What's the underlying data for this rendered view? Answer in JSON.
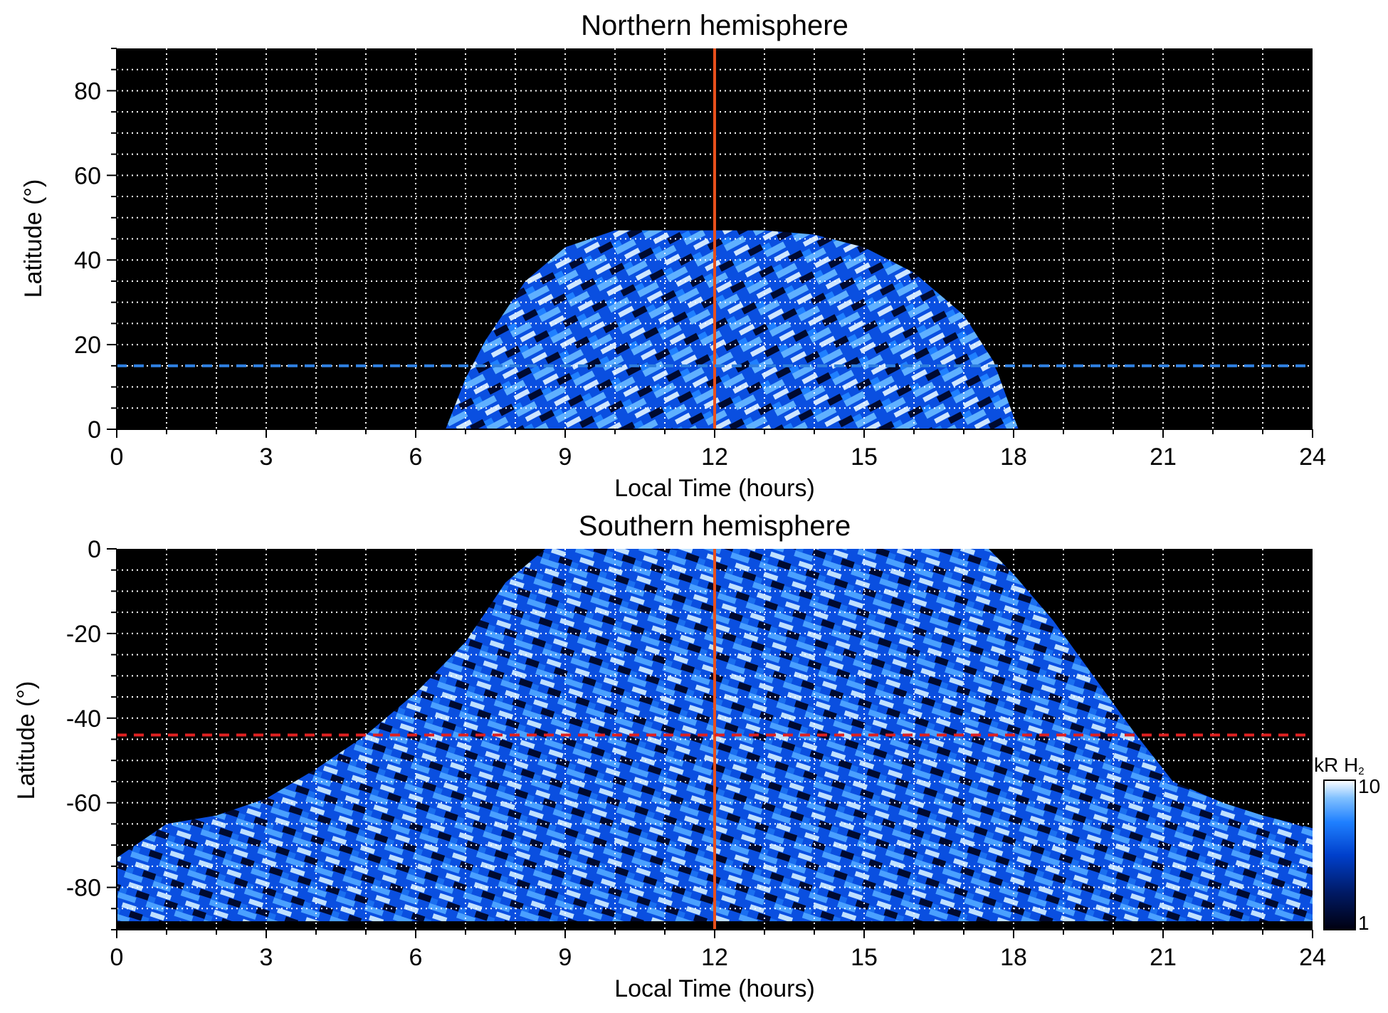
{
  "chart_data": [
    {
      "type": "heatmap",
      "title": "Northern hemisphere",
      "xlabel": "Local Time (hours)",
      "ylabel": "Latitude (°)",
      "xlim": [
        0,
        24
      ],
      "ylim": [
        0,
        90
      ],
      "xticks": [
        "0",
        "3",
        "6",
        "9",
        "12",
        "15",
        "18",
        "21",
        "24"
      ],
      "yticks": [
        "0",
        "20",
        "40",
        "60",
        "80"
      ],
      "grid": true,
      "reference_lines": [
        {
          "orientation": "vertical",
          "x": 12,
          "color": "#e8501c",
          "style": "solid"
        },
        {
          "orientation": "horizontal",
          "y": 15,
          "color": "#2f7fe0",
          "style": "dashed"
        }
      ],
      "emission_region": {
        "color_scale": "logarithmic, 1 to 10 kR H2",
        "lat_edge_by_local_time": [
          [
            6.6,
            0
          ],
          [
            7.0,
            12
          ],
          [
            7.4,
            21
          ],
          [
            8.2,
            35
          ],
          [
            9.0,
            43
          ],
          [
            10.0,
            47
          ],
          [
            11.0,
            47
          ],
          [
            12.0,
            47
          ],
          [
            13.0,
            47
          ],
          [
            14.0,
            46
          ],
          [
            15.0,
            43
          ],
          [
            16.0,
            37
          ],
          [
            17.0,
            27
          ],
          [
            17.6,
            16
          ],
          [
            18.0,
            3
          ],
          [
            18.1,
            0
          ]
        ]
      }
    },
    {
      "type": "heatmap",
      "title": "Southern hemisphere",
      "xlabel": "Local Time (hours)",
      "ylabel": "Latitude (°)",
      "xlim": [
        0,
        24
      ],
      "ylim": [
        -90,
        0
      ],
      "xticks": [
        "0",
        "3",
        "6",
        "9",
        "12",
        "15",
        "18",
        "21",
        "24"
      ],
      "yticks": [
        "0",
        "-20",
        "-40",
        "-60",
        "-80"
      ],
      "grid": true,
      "reference_lines": [
        {
          "orientation": "vertical",
          "x": 12,
          "color": "#e8501c",
          "style": "solid"
        },
        {
          "orientation": "horizontal",
          "y": -44,
          "color": "#e02020",
          "style": "dashed"
        }
      ],
      "emission_region": {
        "color_scale": "logarithmic, 1 to 10 kR H2",
        "lat_edge_by_local_time": [
          [
            0,
            -88
          ],
          [
            0,
            -73
          ],
          [
            1,
            -65
          ],
          [
            2,
            -63
          ],
          [
            3,
            -59
          ],
          [
            4,
            -52
          ],
          [
            5,
            -44
          ],
          [
            6,
            -34
          ],
          [
            7,
            -22
          ],
          [
            7.8,
            -8
          ],
          [
            8.6,
            0
          ],
          [
            17.5,
            0
          ],
          [
            18,
            -6
          ],
          [
            18.8,
            -17
          ],
          [
            19.6,
            -30
          ],
          [
            20.4,
            -43
          ],
          [
            21.2,
            -55
          ],
          [
            22.2,
            -60
          ],
          [
            23.0,
            -63
          ],
          [
            24,
            -66
          ],
          [
            24,
            -88
          ]
        ]
      },
      "colorbar": {
        "label": "kR H",
        "label_subscript": "2",
        "min_label": "1",
        "max_label": "10",
        "colors": [
          "#000010",
          "#001a66",
          "#0040cc",
          "#1f80ff",
          "#80c0ff",
          "#ffffff"
        ]
      }
    }
  ]
}
